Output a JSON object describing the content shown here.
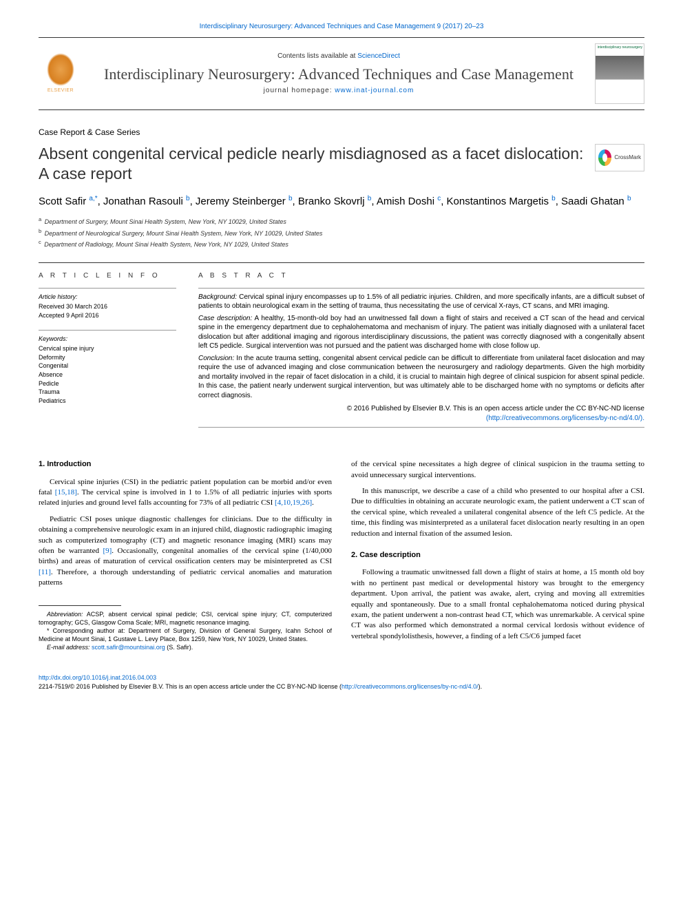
{
  "colors": {
    "link": "#0066cc",
    "text": "#000000",
    "muted": "#333333",
    "elsevier_orange": "#e8a04a",
    "journal_green": "#006837"
  },
  "top_link": "Interdisciplinary Neurosurgery: Advanced Techniques and Case Management 9 (2017) 20–23",
  "header": {
    "elsevier_label": "ELSEVIER",
    "contents_prefix": "Contents lists available at ",
    "contents_link": "ScienceDirect",
    "journal_name": "Interdisciplinary Neurosurgery: Advanced Techniques and Case Management",
    "homepage_prefix": "journal homepage: ",
    "homepage_link": "www.inat-journal.com",
    "cover_title": "interdisciplinary neurosurgery"
  },
  "section_label": "Case Report & Case Series",
  "article_title": "Absent congenital cervical pedicle nearly misdiagnosed as a facet dislocation: A case report",
  "crossmark_label": "CrossMark",
  "authors_html": "Scott Safir <sup>a,*</sup>, Jonathan Rasouli <sup>b</sup>, Jeremy Steinberger <sup>b</sup>, Branko Skovrlj <sup>b</sup>, Amish Doshi <sup>c</sup>, Konstantinos Margetis <sup>b</sup>, Saadi Ghatan <sup>b</sup>",
  "affiliations": [
    {
      "sup": "a",
      "text": "Department of Surgery, Mount Sinai Health System, New York, NY 10029, United States"
    },
    {
      "sup": "b",
      "text": "Department of Neurological Surgery, Mount Sinai Health System, New York, NY 10029, United States"
    },
    {
      "sup": "c",
      "text": "Department of Radiology, Mount Sinai Health System, New York, NY 1029, United States"
    }
  ],
  "article_info": {
    "heading": "A R T I C L E   I N F O",
    "history_label": "Article history:",
    "received": "Received 30 March 2016",
    "accepted": "Accepted 9 April 2016",
    "keywords_label": "Keywords:",
    "keywords": [
      "Cervical spine injury",
      "Deformity",
      "Congenital",
      "Absence",
      "Pedicle",
      "Trauma",
      "Pediatrics"
    ]
  },
  "abstract": {
    "heading": "A B S T R A C T",
    "paragraphs": [
      {
        "label": "Background:",
        "text": " Cervical spinal injury encompasses up to 1.5% of all pediatric injuries. Children, and more specifically infants, are a difficult subset of patients to obtain neurological exam in the setting of trauma, thus necessitating the use of cervical X-rays, CT scans, and MRI imaging."
      },
      {
        "label": "Case description:",
        "text": " A healthy, 15-month-old boy had an unwitnessed fall down a flight of stairs and received a CT scan of the head and cervical spine in the emergency department due to cephalohematoma and mechanism of injury. The patient was initially diagnosed with a unilateral facet dislocation but after additional imaging and rigorous interdisciplinary discussions, the patient was correctly diagnosed with a congenitally absent left C5 pedicle. Surgical intervention was not pursued and the patient was discharged home with close follow up."
      },
      {
        "label": "Conclusion:",
        "text": " In the acute trauma setting, congenital absent cervical pedicle can be difficult to differentiate from unilateral facet dislocation and may require the use of advanced imaging and close communication between the neurosurgery and radiology departments. Given the high morbidity and mortality involved in the repair of facet dislocation in a child, it is crucial to maintain high degree of clinical suspicion for absent spinal pedicle. In this case, the patient nearly underwent surgical intervention, but was ultimately able to be discharged home with no symptoms or deficits after correct diagnosis."
      }
    ],
    "copyright_line1": "© 2016 Published by Elsevier B.V. This is an open access article under the CC BY-NC-ND license",
    "copyright_link": "(http://creativecommons.org/licenses/by-nc-nd/4.0/)."
  },
  "body": {
    "col1": {
      "heading": "1. Introduction",
      "p1_a": "Cervical spine injuries (CSI) in the pediatric patient population can be morbid and/or even fatal ",
      "p1_ref1": "[15,18]",
      "p1_b": ". The cervical spine is involved in 1 to 1.5% of all pediatric injuries with sports related injuries and ground level falls accounting for 73% of all pediatric CSI ",
      "p1_ref2": "[4,10,19,26]",
      "p1_c": ".",
      "p2_a": "Pediatric CSI poses unique diagnostic challenges for clinicians. Due to the difficulty in obtaining a comprehensive neurologic exam in an injured child, diagnostic radiographic imaging such as computerized tomography (CT) and magnetic resonance imaging (MRI) scans may often be warranted ",
      "p2_ref1": "[9]",
      "p2_b": ". Occasionally, congenital anomalies of the cervical spine (1/40,000 births) and areas of maturation of cervical ossification centers may be misinterpreted as CSI ",
      "p2_ref2": "[11]",
      "p2_c": ". Therefore, a thorough understanding of pediatric cervical anomalies and maturation patterns"
    },
    "col2": {
      "p0": "of the cervical spine necessitates a high degree of clinical suspicion in the trauma setting to avoid unnecessary surgical interventions.",
      "p1": "In this manuscript, we describe a case of a child who presented to our hospital after a CSI. Due to difficulties in obtaining an accurate neurologic exam, the patient underwent a CT scan of the cervical spine, which revealed a unilateral congenital absence of the left C5 pedicle. At the time, this finding was misinterpreted as a unilateral facet dislocation nearly resulting in an open reduction and internal fixation of the assumed lesion.",
      "heading": "2. Case description",
      "p2": "Following a traumatic unwitnessed fall down a flight of stairs at home, a 15 month old boy with no pertinent past medical or developmental history was brought to the emergency department. Upon arrival, the patient was awake, alert, crying and moving all extremities equally and spontaneously. Due to a small frontal cephalohematoma noticed during physical exam, the patient underwent a non-contrast head CT, which was unremarkable. A cervical spine CT was also performed which demonstrated a normal cervical lordosis without evidence of vertebral spondylolisthesis, however, a finding of a left C5/C6 jumped facet"
    }
  },
  "footnotes": {
    "abbrev_label": "Abbreviation:",
    "abbrev_text": " ACSP, absent cervical spinal pedicle; CSI, cervical spine injury; CT, computerized tomography; GCS, Glasgow Coma Scale; MRI, magnetic resonance imaging.",
    "corr_marker": "*",
    "corr_text": " Corresponding author at: Department of Surgery, Division of General Surgery, Icahn School of Medicine at Mount Sinai, 1 Gustave L. Levy Place, Box 1259, New York, NY 10029, United States.",
    "email_label": "E-mail address:",
    "email": " scott.safir@mountsinai.org",
    "email_suffix": " (S. Safir)."
  },
  "footer": {
    "doi": "http://dx.doi.org/10.1016/j.inat.2016.04.003",
    "issn_line": "2214-7519/© 2016 Published by Elsevier B.V. This is an open access article under the CC BY-NC-ND license (",
    "cc_link": "http://creativecommons.org/licenses/by-nc-nd/4.0/",
    "issn_suffix": ")."
  }
}
